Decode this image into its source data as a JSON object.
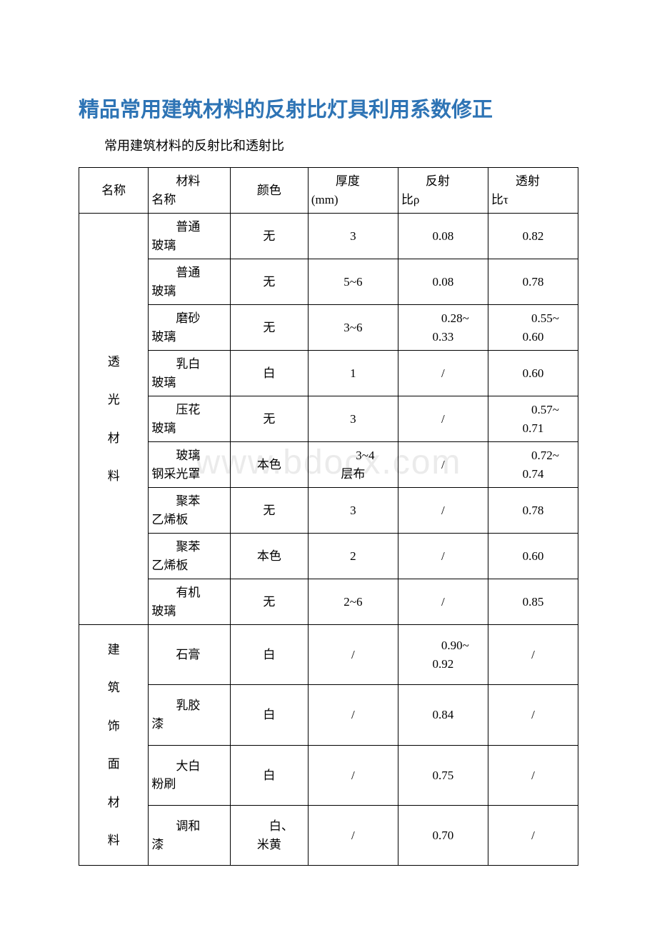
{
  "title": "精品常用建筑材料的反射比灯具利用系数修正",
  "subtitle": "常用建筑材料的反射比和透射比",
  "watermark": "www.bdocx.com",
  "headers": {
    "c1": "名称",
    "c2": "材料名称",
    "c3": "颜色",
    "c4": "厚度(mm)",
    "c5": "反射比ρ",
    "c6": "透射比τ"
  },
  "categories": {
    "cat1": "透光材料",
    "cat2": "建筑饰面材料"
  },
  "rows": [
    {
      "mat": "普通玻璃",
      "color": "无",
      "thick": "3",
      "refl": "0.08",
      "trans": "0.82"
    },
    {
      "mat": "普通玻璃",
      "color": "无",
      "thick": "5~6",
      "refl": "0.08",
      "trans": "0.78"
    },
    {
      "mat": "磨砂玻璃",
      "color": "无",
      "thick": "3~6",
      "refl": "0.28~0.33",
      "trans": "0.55~0.60"
    },
    {
      "mat": "乳白玻璃",
      "color": "白",
      "thick": "1",
      "refl": "/",
      "trans": "0.60"
    },
    {
      "mat": "压花玻璃",
      "color": "无",
      "thick": "3",
      "refl": "/",
      "trans": "0.57~0.71"
    },
    {
      "mat": "玻璃钢采光罩",
      "color": "本色",
      "thick": "3~4层布",
      "refl": "/",
      "trans": "0.72~0.74"
    },
    {
      "mat": "聚苯乙烯板",
      "color": "无",
      "thick": "3",
      "refl": "/",
      "trans": "0.78"
    },
    {
      "mat": "聚苯乙烯板",
      "color": "本色",
      "thick": "2",
      "refl": "/",
      "trans": "0.60"
    },
    {
      "mat": "有机玻璃",
      "color": "无",
      "thick": "2~6",
      "refl": "/",
      "trans": "0.85"
    },
    {
      "mat": "石膏",
      "color": "白",
      "thick": "/",
      "refl": "0.90~0.92",
      "trans": "/"
    },
    {
      "mat": "乳胶漆",
      "color": "白",
      "thick": "/",
      "refl": "0.84",
      "trans": "/"
    },
    {
      "mat": "大白粉刷",
      "color": "白",
      "thick": "/",
      "refl": "0.75",
      "trans": "/"
    },
    {
      "mat": "调和漆",
      "color": "白、米黄",
      "thick": "/",
      "refl": "0.70",
      "trans": "/"
    }
  ],
  "colors": {
    "title": "#2e74b5",
    "text": "#000000",
    "border": "#000000",
    "background": "#ffffff",
    "watermark": "#ebebeb"
  }
}
